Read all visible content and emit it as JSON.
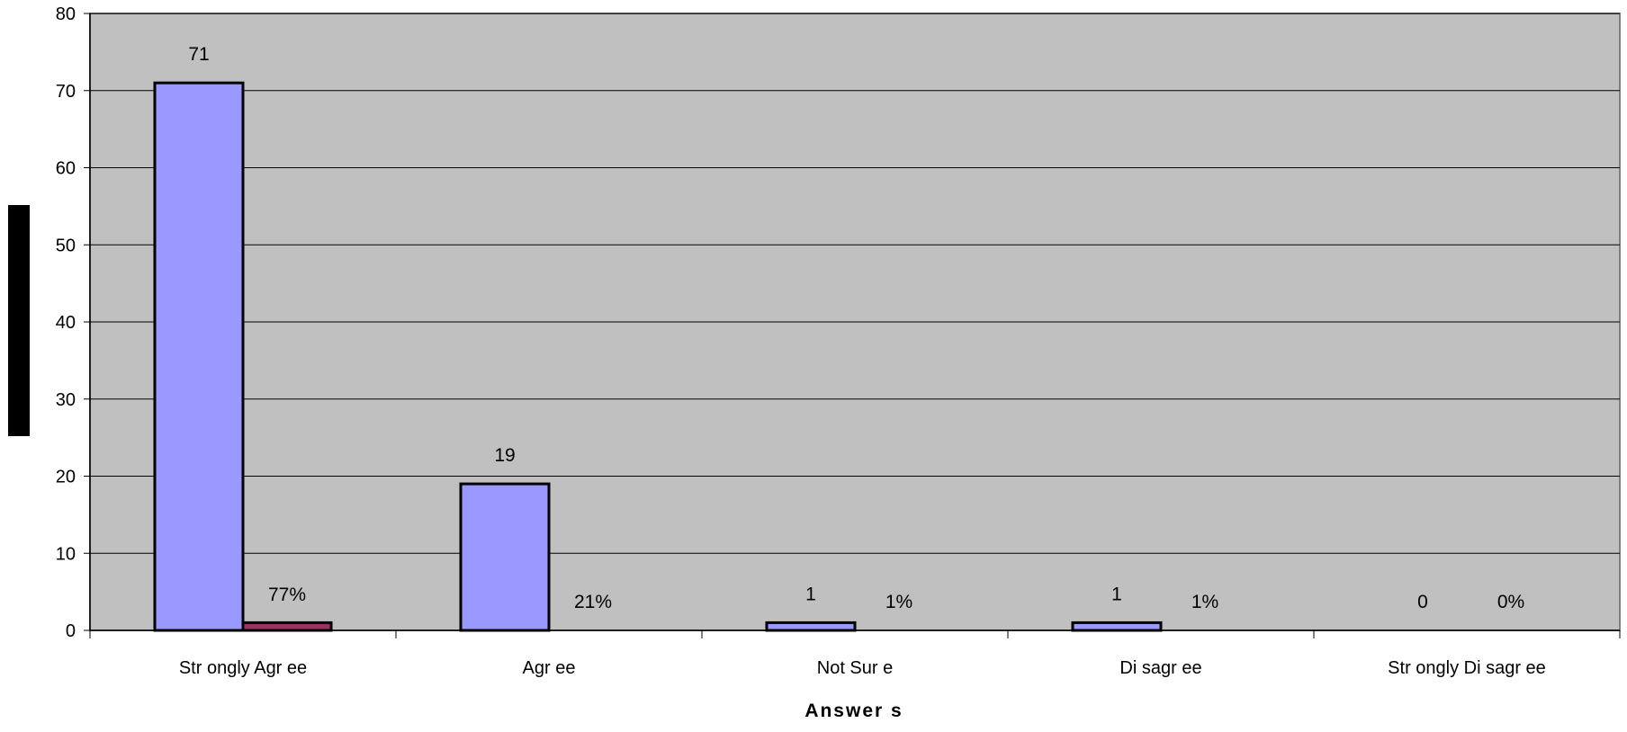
{
  "chart_data": {
    "type": "bar",
    "categories": [
      "Str ongly Agr ee",
      "Agr ee",
      "Not Sur e",
      "Di sagr ee",
      "Str ongly Di sagr ee"
    ],
    "series": [
      {
        "values": [
          71,
          19,
          1,
          1,
          0
        ],
        "labels": [
          "71",
          "19",
          "1",
          "1",
          "0"
        ],
        "color": "#9999ff"
      },
      {
        "values": [
          1,
          0,
          0,
          0,
          0
        ],
        "labels": [
          "77%",
          "21%",
          "1%",
          "1%",
          "0%"
        ],
        "color": "#993366"
      }
    ],
    "xlabel": "Answer s",
    "ylabel": "",
    "ylim": [
      0,
      80
    ],
    "yticks": [
      0,
      10,
      20,
      30,
      40,
      50,
      60,
      70,
      80
    ],
    "grid": true,
    "plot_background": "#c0c0c0",
    "gridline_color": "#000000"
  }
}
